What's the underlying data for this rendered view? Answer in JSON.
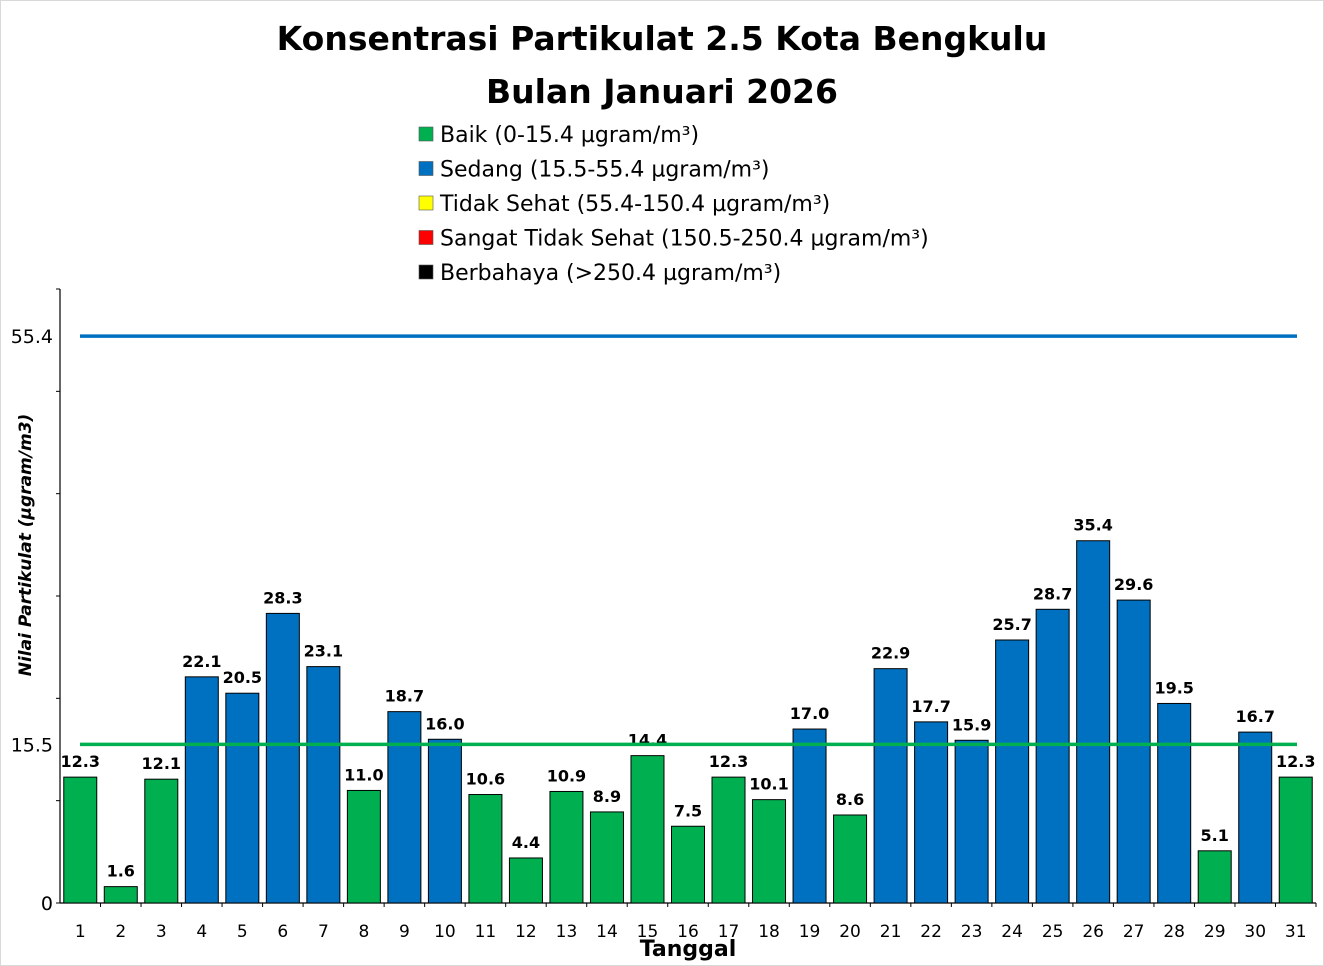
{
  "chart_data": {
    "type": "bar",
    "title": [
      "Konsentrasi Partikulat 2.5 Kota Bengkulu",
      "Bulan Januari 2026"
    ],
    "xlabel": "Tanggal",
    "ylabel": "Nilai Partikulat (µgram/m3)",
    "ylim": [
      0,
      60
    ],
    "ytick_labels": [
      "0",
      "15.5",
      "55.4"
    ],
    "categories": [
      "1",
      "2",
      "3",
      "4",
      "5",
      "6",
      "7",
      "8",
      "9",
      "10",
      "11",
      "12",
      "13",
      "14",
      "15",
      "16",
      "17",
      "18",
      "19",
      "20",
      "21",
      "22",
      "23",
      "24",
      "25",
      "26",
      "27",
      "28",
      "29",
      "30",
      "31"
    ],
    "values": [
      12.3,
      1.6,
      12.1,
      22.1,
      20.5,
      28.3,
      23.1,
      11.0,
      18.7,
      16.0,
      10.6,
      4.4,
      10.9,
      8.9,
      14.4,
      7.5,
      12.3,
      10.1,
      17.0,
      8.6,
      22.9,
      17.7,
      15.9,
      25.7,
      28.7,
      35.4,
      29.6,
      19.5,
      5.1,
      16.7,
      12.3
    ],
    "value_labels": [
      "12.3",
      "1.6",
      "12.1",
      "22.1",
      "20.5",
      "28.3",
      "23.1",
      "11.0",
      "18.7",
      "16.0",
      "10.6",
      "4.4",
      "10.9",
      "8.9",
      "14.4",
      "7.5",
      "12.3",
      "10.1",
      "17.0",
      "8.6",
      "22.9",
      "17.7",
      "15.9",
      "25.7",
      "28.7",
      "35.4",
      "29.6",
      "19.5",
      "5.1",
      "16.7",
      "12.3"
    ],
    "legend": [
      {
        "label": "Baik (0-15.4 µgram/m³)",
        "color": "#00b050",
        "min": 0,
        "max": 15.4
      },
      {
        "label": "Sedang (15.5-55.4 µgram/m³)",
        "color": "#0070c0",
        "min": 15.5,
        "max": 55.4
      },
      {
        "label": "Tidak Sehat (55.4-150.4 µgram/m³)",
        "color": "#ffff00",
        "min": 55.4,
        "max": 150.4
      },
      {
        "label": "Sangat Tidak Sehat (150.5-250.4 µgram/m³)",
        "color": "#ff0000",
        "min": 150.5,
        "max": 250.4
      },
      {
        "label": "Berbahaya (>250.4 µgram/m³)",
        "color": "#000000",
        "min": 250.4,
        "max": null
      }
    ],
    "legend_position": "top-center",
    "reference_lines": [
      {
        "value": 55.4,
        "color": "#0070c0"
      },
      {
        "value": 15.5,
        "color": "#00b050"
      }
    ],
    "grid": false
  }
}
